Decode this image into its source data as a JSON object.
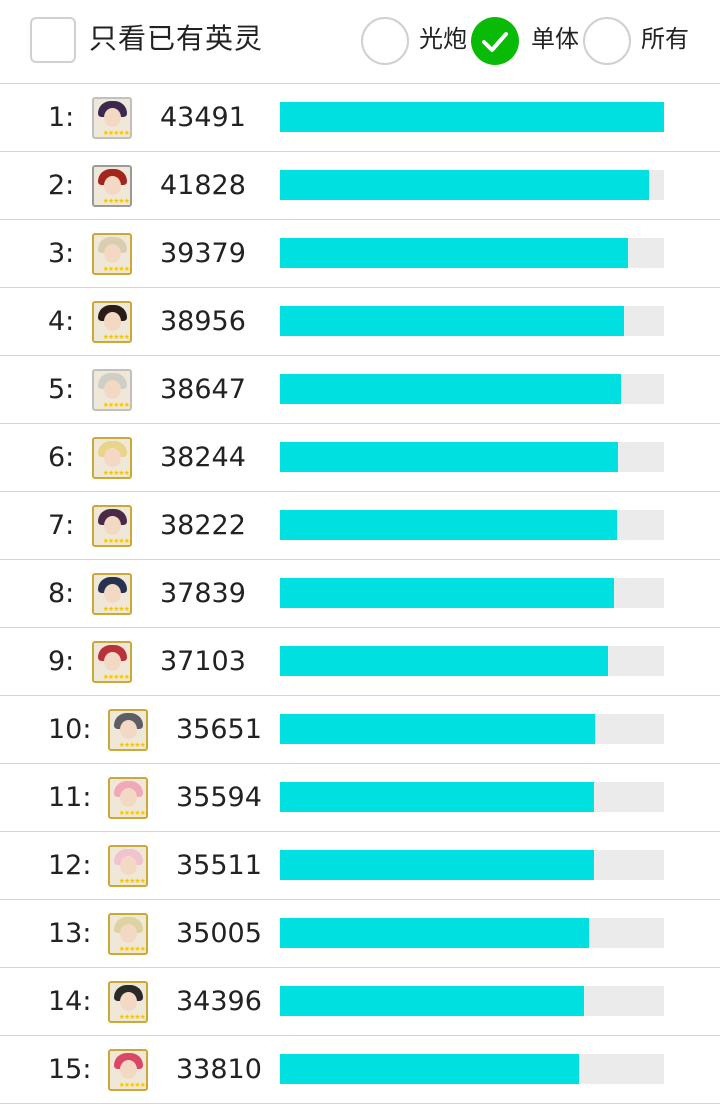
{
  "filters": {
    "only_owned_label": "只看已有英灵",
    "only_owned_checked": false,
    "options": [
      {
        "label": "光炮",
        "checked": true,
        "selected": false
      },
      {
        "label": "单体",
        "checked": true,
        "selected": true
      },
      {
        "label": "所有",
        "checked": false,
        "selected": false
      }
    ],
    "accent_color": "#09bb07"
  },
  "bar_color": "#00e0e0",
  "bar_track_color": "#ebebeb",
  "max_score": 43491,
  "rankings": [
    {
      "rank": "1:",
      "score": "43491",
      "value": 43491,
      "avatar_icon": "servant-portrait-icon",
      "hair": "#3b2a4d",
      "frame": "#c0c0c0"
    },
    {
      "rank": "2:",
      "score": "41828",
      "value": 41828,
      "avatar_icon": "servant-portrait-icon",
      "hair": "#a0261f",
      "frame": "#9a9a9a"
    },
    {
      "rank": "3:",
      "score": "39379",
      "value": 39379,
      "avatar_icon": "servant-portrait-icon",
      "hair": "#d8cfb0",
      "frame": "#c9a93a"
    },
    {
      "rank": "4:",
      "score": "38956",
      "value": 38956,
      "avatar_icon": "servant-portrait-icon",
      "hair": "#2a1d18",
      "frame": "#c9a93a"
    },
    {
      "rank": "5:",
      "score": "38647",
      "value": 38647,
      "avatar_icon": "servant-portrait-icon",
      "hair": "#cfcfc8",
      "frame": "#c0c0c0"
    },
    {
      "rank": "6:",
      "score": "38244",
      "value": 38244,
      "avatar_icon": "servant-portrait-icon",
      "hair": "#e8d58a",
      "frame": "#c9a93a"
    },
    {
      "rank": "7:",
      "score": "38222",
      "value": 38222,
      "avatar_icon": "servant-portrait-icon",
      "hair": "#4a2b46",
      "frame": "#c9a93a"
    },
    {
      "rank": "8:",
      "score": "37839",
      "value": 37839,
      "avatar_icon": "servant-portrait-icon",
      "hair": "#26324f",
      "frame": "#c9a93a"
    },
    {
      "rank": "9:",
      "score": "37103",
      "value": 37103,
      "avatar_icon": "servant-portrait-icon",
      "hair": "#b8323a",
      "frame": "#c9a93a"
    },
    {
      "rank": "10:",
      "score": "35651",
      "value": 35651,
      "avatar_icon": "servant-portrait-icon",
      "hair": "#5d5d66",
      "frame": "#c9a93a"
    },
    {
      "rank": "11:",
      "score": "35594",
      "value": 35594,
      "avatar_icon": "servant-portrait-icon",
      "hair": "#f0a9b9",
      "frame": "#c9a93a"
    },
    {
      "rank": "12:",
      "score": "35511",
      "value": 35511,
      "avatar_icon": "servant-portrait-icon",
      "hair": "#f1c3d2",
      "frame": "#c9a93a"
    },
    {
      "rank": "13:",
      "score": "35005",
      "value": 35005,
      "avatar_icon": "servant-portrait-icon",
      "hair": "#ddd2a2",
      "frame": "#c9a93a"
    },
    {
      "rank": "14:",
      "score": "34396",
      "value": 34396,
      "avatar_icon": "servant-portrait-icon",
      "hair": "#2b2a2a",
      "frame": "#c9a93a"
    },
    {
      "rank": "15:",
      "score": "33810",
      "value": 33810,
      "avatar_icon": "servant-portrait-icon",
      "hair": "#d94867",
      "frame": "#c9a93a"
    }
  ]
}
